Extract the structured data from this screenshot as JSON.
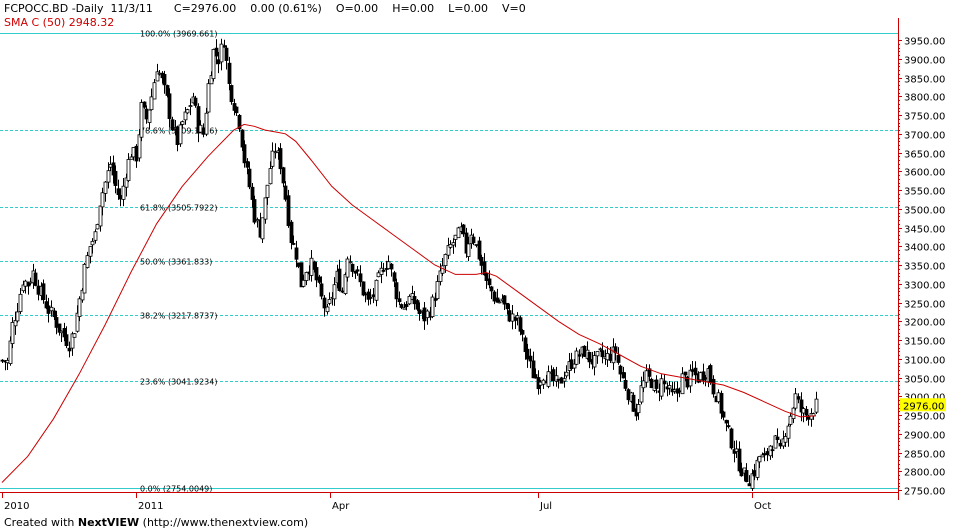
{
  "header": {
    "symbol": "FCPOCC.BD",
    "period": "-Daily",
    "date": "11/3/11",
    "close": "C=2976.00",
    "change": "0.00 (0.61%)",
    "open": "O=0.00",
    "high": "H=0.00",
    "low": "L=0.00",
    "volume": "V=0"
  },
  "indicator": {
    "label": "SMA C (50) 2948.32"
  },
  "footer": {
    "prefix": "Created with ",
    "brand_a": "Next",
    "brand_b": "VIEW",
    "url": " (http://www.thenextview.com)"
  },
  "colors": {
    "fib_line": "#33cccc",
    "sma_line": "#cc0000",
    "axis": "#cc0000",
    "candle": "#000000",
    "price_tag_bg": "#ffff00"
  },
  "chart_data": {
    "type": "candlestick",
    "y_axis_ticks": [
      "3950.00",
      "3900.00",
      "3850.00",
      "3800.00",
      "3750.00",
      "3700.00",
      "3650.00",
      "3600.00",
      "3550.00",
      "3500.00",
      "3450.00",
      "3400.00",
      "3350.00",
      "3300.00",
      "3250.00",
      "3200.00",
      "3150.00",
      "3100.00",
      "3050.00",
      "3000.00",
      "2950.00",
      "2900.00",
      "2850.00",
      "2800.00",
      "2750.00"
    ],
    "ylim": [
      2740,
      3975
    ],
    "last_price_label": "2976.00",
    "last_price": 2976,
    "x_axis_labels": [
      "2010",
      "2011",
      "Apr",
      "Jul",
      "Oct"
    ],
    "fib_levels": [
      {
        "label": "100.0% (3969.661)",
        "value": 3969.661
      },
      {
        "label": "78.6% (3709.1016)",
        "value": 3709.1016
      },
      {
        "label": "61.8% (3505.7922)",
        "value": 3505.7922
      },
      {
        "label": "50.0% (3361.833)",
        "value": 3361.833
      },
      {
        "label": "38.2% (3217.8737)",
        "value": 3217.8737
      },
      {
        "label": "23.6% (3041.9234)",
        "value": 3041.9234
      },
      {
        "label": "0.0% (2754.0049)",
        "value": 2754.0049
      }
    ],
    "close_path": [
      [
        0,
        3095
      ],
      [
        2,
        3092
      ],
      [
        4,
        3190
      ],
      [
        6,
        3240
      ],
      [
        8,
        3310
      ],
      [
        10,
        3300
      ],
      [
        12,
        3330
      ],
      [
        14,
        3290
      ],
      [
        16,
        3260
      ],
      [
        18,
        3230
      ],
      [
        20,
        3210
      ],
      [
        22,
        3180
      ],
      [
        24,
        3160
      ],
      [
        26,
        3140
      ],
      [
        28,
        3180
      ],
      [
        30,
        3260
      ],
      [
        32,
        3340
      ],
      [
        34,
        3400
      ],
      [
        36,
        3430
      ],
      [
        38,
        3520
      ],
      [
        40,
        3570
      ],
      [
        42,
        3620
      ],
      [
        44,
        3560
      ],
      [
        46,
        3520
      ],
      [
        48,
        3600
      ],
      [
        50,
        3650
      ],
      [
        52,
        3640
      ],
      [
        54,
        3770
      ],
      [
        56,
        3740
      ],
      [
        58,
        3800
      ],
      [
        60,
        3880
      ],
      [
        62,
        3840
      ],
      [
        64,
        3790
      ],
      [
        66,
        3720
      ],
      [
        68,
        3680
      ],
      [
        70,
        3730
      ],
      [
        72,
        3760
      ],
      [
        74,
        3800
      ],
      [
        76,
        3720
      ],
      [
        78,
        3700
      ],
      [
        80,
        3830
      ],
      [
        82,
        3920
      ],
      [
        84,
        3900
      ],
      [
        86,
        3950
      ],
      [
        88,
        3830
      ],
      [
        90,
        3780
      ],
      [
        92,
        3730
      ],
      [
        94,
        3630
      ],
      [
        96,
        3560
      ],
      [
        98,
        3480
      ],
      [
        100,
        3440
      ],
      [
        102,
        3520
      ],
      [
        104,
        3610
      ],
      [
        106,
        3660
      ],
      [
        108,
        3620
      ],
      [
        110,
        3530
      ],
      [
        112,
        3420
      ],
      [
        114,
        3380
      ],
      [
        116,
        3300
      ],
      [
        118,
        3340
      ],
      [
        120,
        3350
      ],
      [
        122,
        3310
      ],
      [
        124,
        3260
      ],
      [
        126,
        3220
      ],
      [
        128,
        3270
      ],
      [
        130,
        3320
      ],
      [
        132,
        3280
      ],
      [
        134,
        3380
      ],
      [
        136,
        3350
      ],
      [
        138,
        3320
      ],
      [
        140,
        3280
      ],
      [
        142,
        3250
      ],
      [
        144,
        3270
      ],
      [
        146,
        3310
      ],
      [
        148,
        3350
      ],
      [
        150,
        3360
      ],
      [
        152,
        3300
      ],
      [
        154,
        3250
      ],
      [
        156,
        3240
      ],
      [
        158,
        3260
      ],
      [
        160,
        3250
      ],
      [
        162,
        3220
      ],
      [
        164,
        3210
      ],
      [
        166,
        3230
      ],
      [
        168,
        3270
      ],
      [
        170,
        3320
      ],
      [
        172,
        3370
      ],
      [
        174,
        3400
      ],
      [
        176,
        3420
      ],
      [
        178,
        3440
      ],
      [
        180,
        3390
      ],
      [
        182,
        3440
      ],
      [
        184,
        3400
      ],
      [
        186,
        3350
      ],
      [
        188,
        3300
      ],
      [
        190,
        3280
      ],
      [
        192,
        3250
      ],
      [
        194,
        3260
      ],
      [
        196,
        3220
      ],
      [
        198,
        3210
      ],
      [
        200,
        3200
      ],
      [
        202,
        3150
      ],
      [
        204,
        3100
      ],
      [
        206,
        3060
      ],
      [
        208,
        3040
      ],
      [
        210,
        3060
      ],
      [
        212,
        3050
      ],
      [
        214,
        3040
      ],
      [
        216,
        3030
      ],
      [
        218,
        3060
      ],
      [
        220,
        3080
      ],
      [
        222,
        3100
      ],
      [
        224,
        3110
      ],
      [
        226,
        3120
      ],
      [
        228,
        3100
      ],
      [
        230,
        3090
      ],
      [
        232,
        3110
      ],
      [
        234,
        3100
      ],
      [
        236,
        3110
      ],
      [
        238,
        3120
      ],
      [
        240,
        3060
      ],
      [
        242,
        3030
      ],
      [
        244,
        2990
      ],
      [
        246,
        2960
      ],
      [
        248,
        3020
      ],
      [
        250,
        3050
      ],
      [
        252,
        3040
      ],
      [
        254,
        3010
      ],
      [
        256,
        3040
      ],
      [
        258,
        3020
      ],
      [
        260,
        3000
      ],
      [
        262,
        3010
      ],
      [
        264,
        3050
      ],
      [
        266,
        3040
      ],
      [
        268,
        3060
      ],
      [
        270,
        3050
      ],
      [
        272,
        3060
      ],
      [
        274,
        3070
      ],
      [
        276,
        3020
      ],
      [
        278,
        2990
      ],
      [
        280,
        2940
      ],
      [
        282,
        2900
      ],
      [
        284,
        2860
      ],
      [
        286,
        2820
      ],
      [
        288,
        2790
      ],
      [
        290,
        2780
      ],
      [
        292,
        2800
      ],
      [
        294,
        2840
      ],
      [
        296,
        2830
      ],
      [
        298,
        2870
      ],
      [
        300,
        2880
      ],
      [
        302,
        2850
      ],
      [
        304,
        2910
      ],
      [
        306,
        2950
      ],
      [
        308,
        3000
      ],
      [
        310,
        2960
      ],
      [
        312,
        2950
      ],
      [
        314,
        2960
      ],
      [
        316,
        2976
      ]
    ],
    "sma_path": [
      [
        0,
        2770
      ],
      [
        10,
        2840
      ],
      [
        20,
        2940
      ],
      [
        30,
        3060
      ],
      [
        40,
        3190
      ],
      [
        50,
        3330
      ],
      [
        60,
        3460
      ],
      [
        70,
        3560
      ],
      [
        80,
        3640
      ],
      [
        90,
        3710
      ],
      [
        94,
        3725
      ],
      [
        98,
        3720
      ],
      [
        102,
        3710
      ],
      [
        106,
        3705
      ],
      [
        110,
        3700
      ],
      [
        114,
        3680
      ],
      [
        120,
        3630
      ],
      [
        128,
        3560
      ],
      [
        136,
        3510
      ],
      [
        144,
        3470
      ],
      [
        152,
        3430
      ],
      [
        160,
        3390
      ],
      [
        168,
        3350
      ],
      [
        176,
        3325
      ],
      [
        184,
        3325
      ],
      [
        188,
        3330
      ],
      [
        192,
        3320
      ],
      [
        200,
        3280
      ],
      [
        208,
        3240
      ],
      [
        216,
        3200
      ],
      [
        224,
        3165
      ],
      [
        232,
        3140
      ],
      [
        240,
        3110
      ],
      [
        248,
        3080
      ],
      [
        256,
        3060
      ],
      [
        264,
        3050
      ],
      [
        272,
        3040
      ],
      [
        280,
        3030
      ],
      [
        288,
        3010
      ],
      [
        296,
        2985
      ],
      [
        304,
        2960
      ],
      [
        310,
        2945
      ],
      [
        316,
        2948
      ]
    ]
  }
}
